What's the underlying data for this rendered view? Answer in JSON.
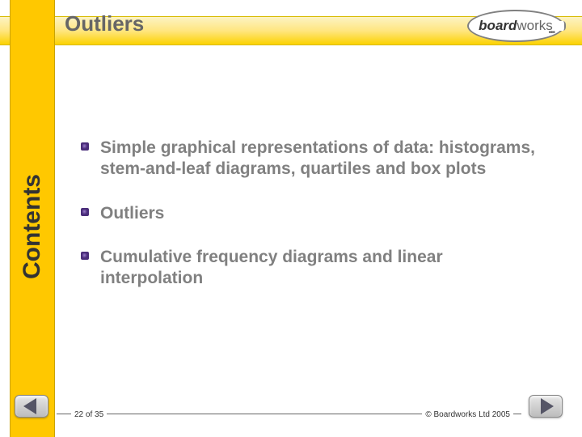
{
  "title": "Outliers",
  "sidebar_label": "Contents",
  "logo": {
    "part1": "board",
    "part2": "works",
    "dots": "•••"
  },
  "items": [
    {
      "text": "Simple graphical representations of data: histograms, stem-and-leaf diagrams, quartiles and box plots"
    },
    {
      "text": "Outliers"
    },
    {
      "text": "Cumulative frequency diagrams and linear interpolation"
    }
  ],
  "page_indicator": "22 of 35",
  "copyright": "© Boardworks Ltd 2005",
  "colors": {
    "sidebar": "#ffc800",
    "bullet_border": "#4a2d7a",
    "text_gray": "#808080",
    "title_gray": "#666666"
  }
}
